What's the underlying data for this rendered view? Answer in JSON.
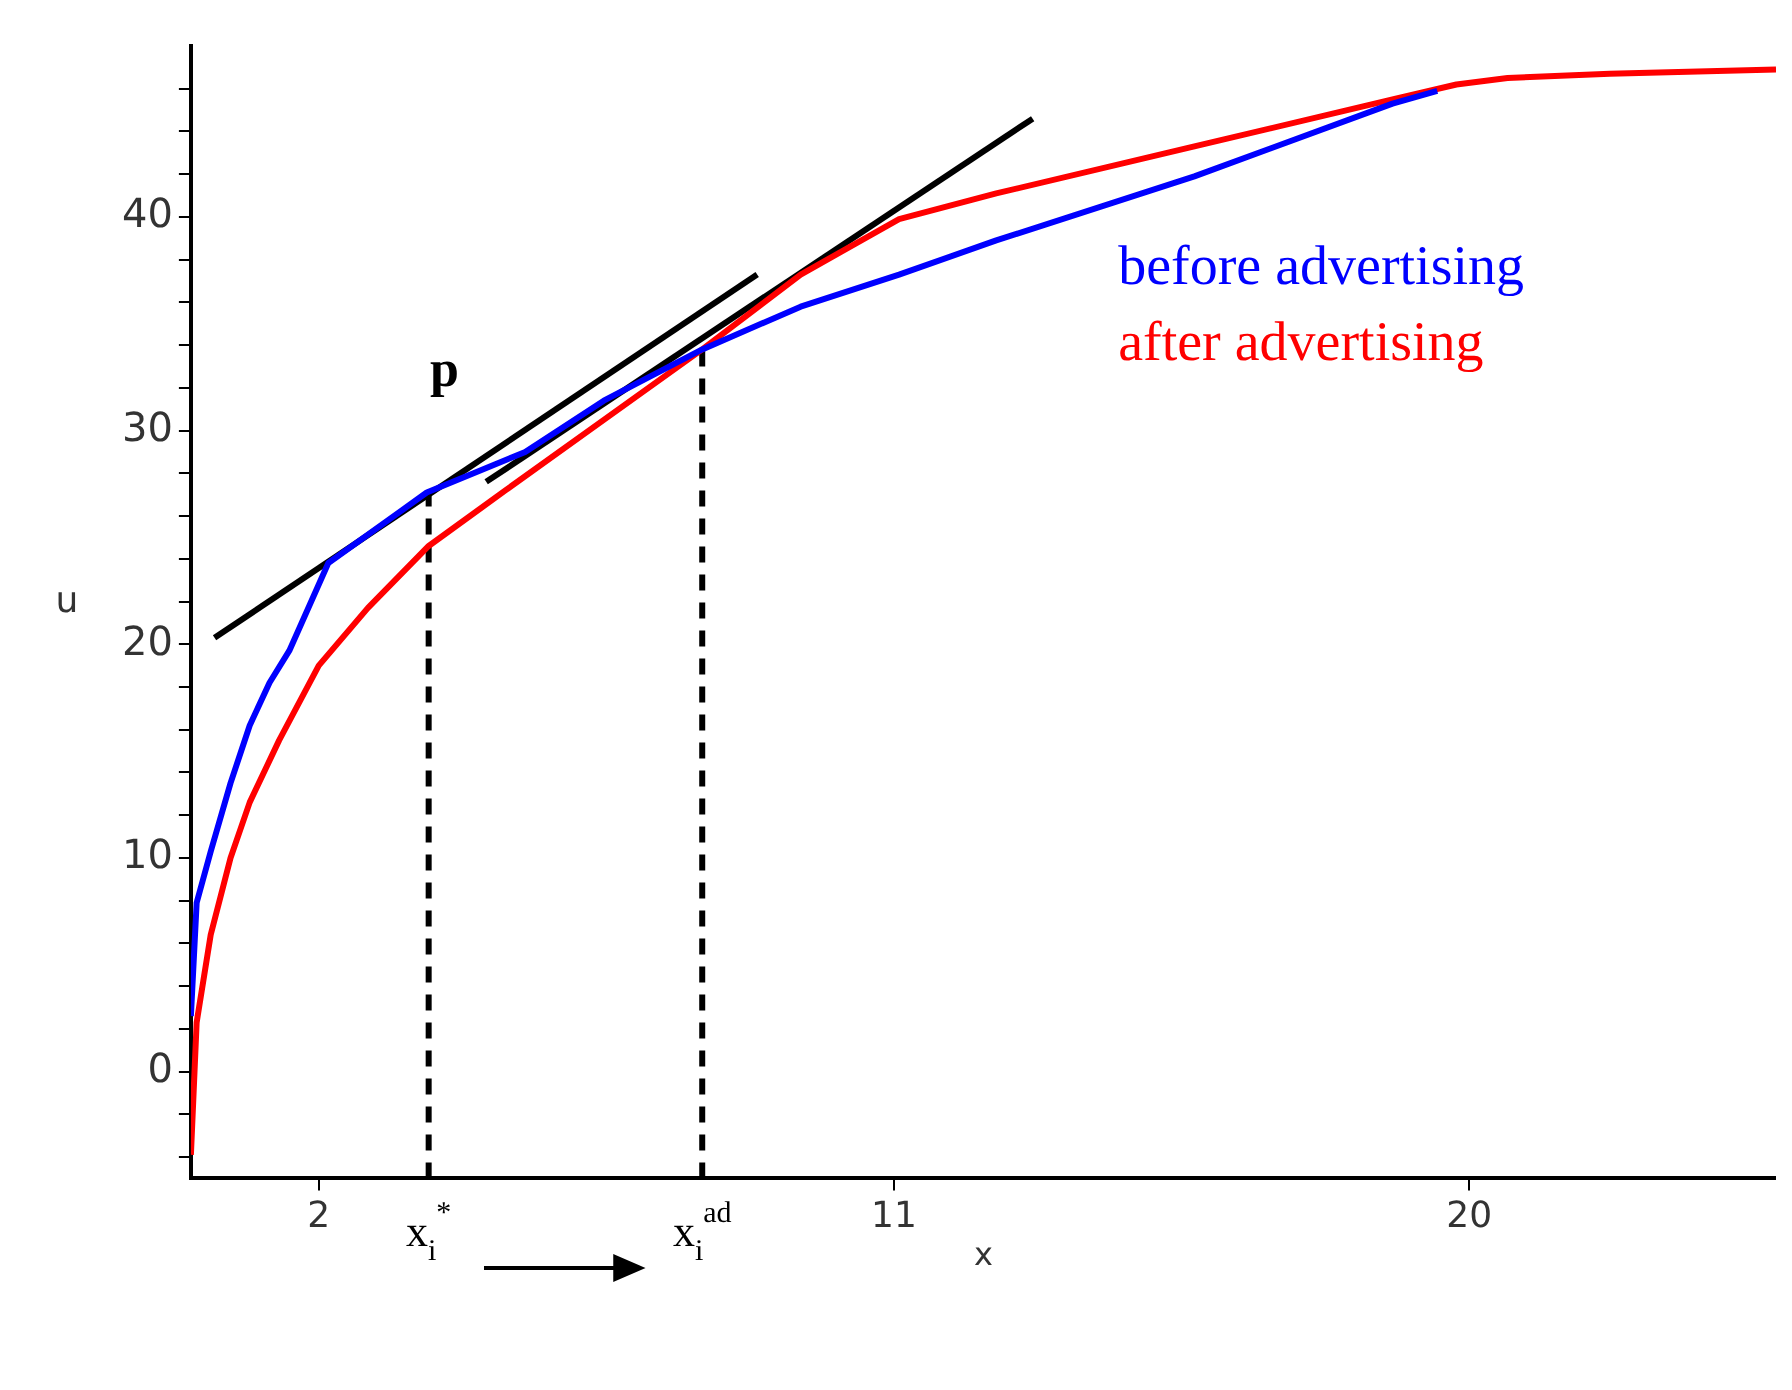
{
  "chart_data": {
    "type": "line",
    "xlabel": "x",
    "ylabel": "u",
    "xlim": [
      0,
      24.8
    ],
    "ylim": [
      -5,
      48
    ],
    "xticks": [
      2,
      11,
      20
    ],
    "yticks": [
      {
        "value": -4,
        "label": null
      },
      {
        "value": -2,
        "label": null
      },
      0,
      {
        "value": 2,
        "label": null
      },
      {
        "value": 4,
        "label": null
      },
      {
        "value": 6,
        "label": null
      },
      {
        "value": 8,
        "label": null
      },
      10,
      {
        "value": 12,
        "label": null
      },
      {
        "value": 14,
        "label": null
      },
      {
        "value": 16,
        "label": null
      },
      {
        "value": 18,
        "label": null
      },
      20,
      {
        "value": 22,
        "label": null
      },
      {
        "value": 24,
        "label": null
      },
      {
        "value": 26,
        "label": null
      },
      {
        "value": 28,
        "label": null
      },
      30,
      {
        "value": 32,
        "label": null
      },
      {
        "value": 34,
        "label": null
      },
      {
        "value": 36,
        "label": null
      },
      {
        "value": 38,
        "label": null
      },
      40,
      {
        "value": 42,
        "label": null
      },
      {
        "value": 44,
        "label": null
      },
      {
        "value": 46,
        "label": null
      }
    ],
    "grid": false,
    "legend": "right",
    "marker": "none",
    "line_style": "solid",
    "series": [
      {
        "name": "before advertising",
        "color": "#0000ff",
        "x": [
          0,
          0.09,
          0.31,
          0.62,
          0.92,
          1.23,
          1.54,
          2.15,
          3.69,
          5.23,
          6.46,
          8.0,
          9.54,
          11.08,
          12.6,
          15.7,
          18.8,
          19.5
        ],
        "values": [
          2.6,
          7.9,
          10.3,
          13.5,
          16.2,
          18.2,
          19.7,
          23.8,
          27.1,
          29,
          31.4,
          33.8,
          35.8,
          37.3,
          38.9,
          41.9,
          45.3,
          45.9
        ]
      },
      {
        "name": "after advertising",
        "color": "#ff0000",
        "x": [
          0,
          0.09,
          0.31,
          0.62,
          0.92,
          1.38,
          2.0,
          2.77,
          3.72,
          4.92,
          6.46,
          8.0,
          9.54,
          11.08,
          12.6,
          15.7,
          18.8,
          19.8,
          20.6,
          22.2,
          24.8
        ],
        "values": [
          -3.9,
          2.3,
          6.4,
          10,
          12.6,
          15.5,
          19,
          21.7,
          24.6,
          27.2,
          30.5,
          33.8,
          37.3,
          39.9,
          41.1,
          43.3,
          45.5,
          46.2,
          46.5,
          46.7,
          46.9
        ]
      },
      {
        "color": "#000000",
        "x": [
          0.37,
          8.86
        ],
        "values": [
          20.3,
          37.3
        ]
      },
      {
        "color": "#000000",
        "x": [
          4.62,
          13.17
        ],
        "values": [
          27.6,
          44.6
        ]
      },
      {
        "color": "#000000",
        "line_style": "dashed",
        "x": [
          3.72,
          3.72
        ],
        "values": [
          -5,
          27.1
        ]
      },
      {
        "color": "#000000",
        "line_style": "dashed",
        "x": [
          8.0,
          8.0
        ],
        "values": [
          -5,
          34.3
        ]
      }
    ],
    "annotations": [
      "p",
      {
        "text": "x$_{i}$$^{*}$",
        "x": 3.72,
        "y": -5
      },
      {
        "text": "x$_{i}$$^{ad}$",
        "x": 8.0,
        "y": -5
      }
    ]
  }
}
